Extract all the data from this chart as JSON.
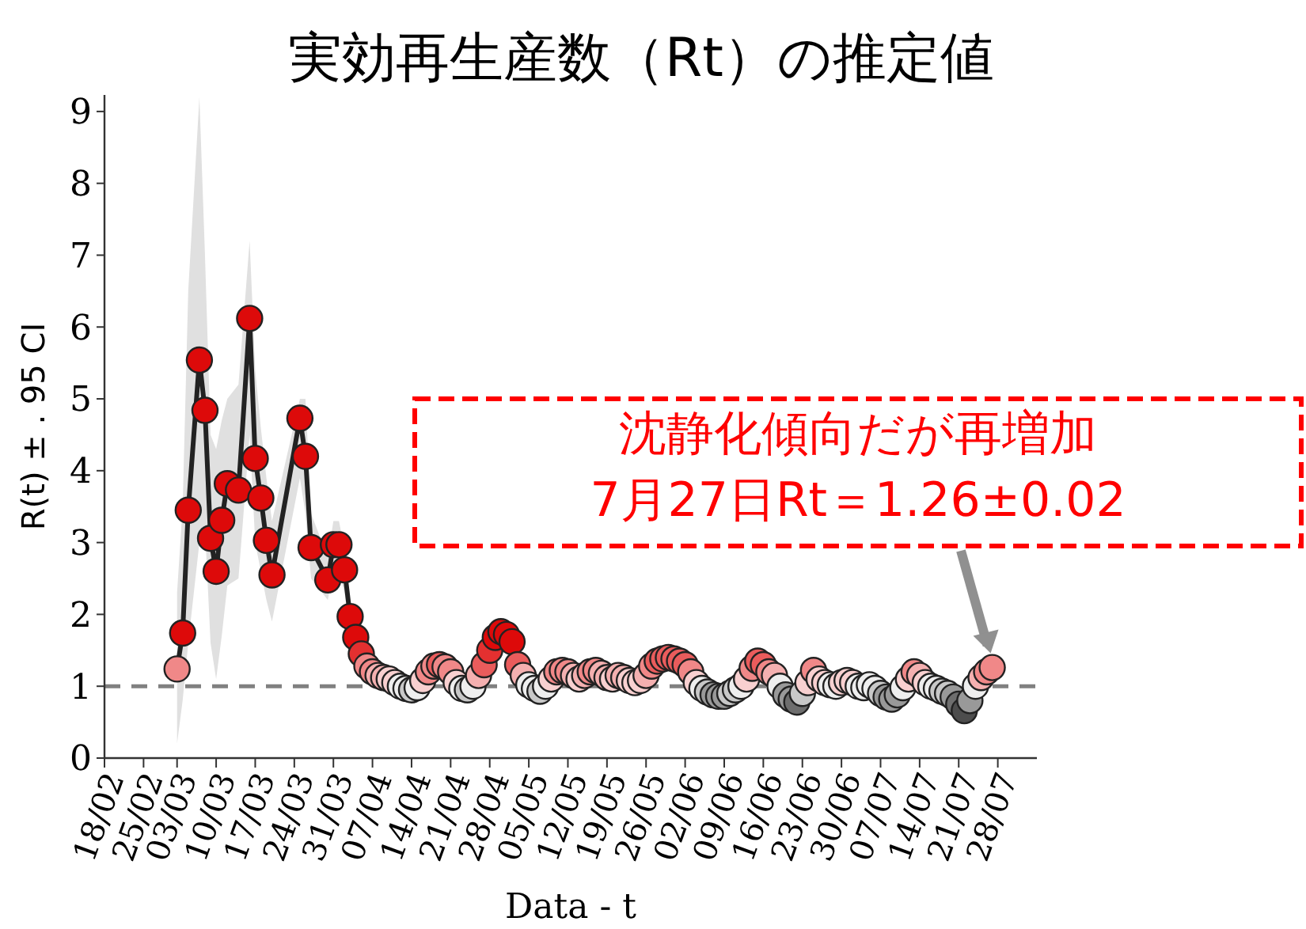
{
  "chart_data": {
    "type": "line",
    "title": "実効再生産数（Rt）の推定値",
    "xlabel": "Data - t",
    "ylabel": "R(t) ± . 95 CI",
    "marker": "circle",
    "grid": false,
    "xlim": [
      "--02-18",
      "--08-04"
    ],
    "ylim": [
      0,
      9.23
    ],
    "yticks": [
      0,
      1,
      2,
      3,
      4,
      5,
      6,
      7,
      8,
      9
    ],
    "xticks": [
      {
        "value": "--02-18",
        "label": "18/02"
      },
      {
        "value": "--02-25",
        "label": "25/02"
      },
      {
        "value": "--03-03",
        "label": "03/03"
      },
      {
        "value": "--03-10",
        "label": "10/03"
      },
      {
        "value": "--03-17",
        "label": "17/03"
      },
      {
        "value": "--03-24",
        "label": "24/03"
      },
      {
        "value": "--03-31",
        "label": "31/03"
      },
      {
        "value": "--04-07",
        "label": "07/04"
      },
      {
        "value": "--04-14",
        "label": "14/04"
      },
      {
        "value": "--04-21",
        "label": "21/04"
      },
      {
        "value": "--04-28",
        "label": "28/04"
      },
      {
        "value": "--05-05",
        "label": "05/05"
      },
      {
        "value": "--05-12",
        "label": "12/05"
      },
      {
        "value": "--05-19",
        "label": "19/05"
      },
      {
        "value": "--05-26",
        "label": "26/05"
      },
      {
        "value": "--06-02",
        "label": "02/06"
      },
      {
        "value": "--06-09",
        "label": "09/06"
      },
      {
        "value": "--06-16",
        "label": "16/06"
      },
      {
        "value": "--06-23",
        "label": "23/06"
      },
      {
        "value": "--06-30",
        "label": "30/06"
      },
      {
        "value": "--07-07",
        "label": "07/07"
      },
      {
        "value": "--07-14",
        "label": "14/07"
      },
      {
        "value": "--07-21",
        "label": "21/07"
      },
      {
        "value": "--07-28",
        "label": "28/07"
      }
    ],
    "ref_lines": [
      {
        "axis": "y",
        "value": 1,
        "color": "#808080",
        "line_style": "dashed"
      }
    ],
    "annotations": [
      {
        "text": "沈静化傾向だが再増加\n7月27日Rt＝1.26±0.02",
        "x": "--07-27",
        "y": 1.26
      }
    ],
    "series": [
      {
        "color": "#222222",
        "x": [
          "--03-03",
          "--03-04",
          "--03-05",
          "--03-07",
          "--03-08",
          "--03-09",
          "--03-10",
          "--03-11",
          "--03-12",
          "--03-14",
          "--03-16",
          "--03-17",
          "--03-18",
          "--03-19",
          "--03-20",
          "--03-25",
          "--03-26",
          "--03-27",
          "--03-30",
          "--03-31",
          "--04-01",
          "--04-02",
          "--04-03",
          "--04-04",
          "--04-05",
          "--04-06",
          "--04-07",
          "--04-08",
          "--04-09",
          "--04-10",
          "--04-11",
          "--04-12",
          "--04-13",
          "--04-14",
          "--04-15",
          "--04-16",
          "--04-17",
          "--04-18",
          "--04-19",
          "--04-20",
          "--04-21",
          "--04-22",
          "--04-23",
          "--04-24",
          "--04-25",
          "--04-26",
          "--04-27",
          "--04-28",
          "--04-29",
          "--04-30",
          "--05-01",
          "--05-02",
          "--05-03",
          "--05-04",
          "--05-05",
          "--05-06",
          "--05-07",
          "--05-08",
          "--05-09",
          "--05-10",
          "--05-11",
          "--05-12",
          "--05-13",
          "--05-14",
          "--05-15",
          "--05-16",
          "--05-17",
          "--05-18",
          "--05-19",
          "--05-20",
          "--05-21",
          "--05-22",
          "--05-23",
          "--05-24",
          "--05-25",
          "--05-26",
          "--05-27",
          "--05-28",
          "--05-29",
          "--05-30",
          "--05-31",
          "--06-01",
          "--06-02",
          "--06-03",
          "--06-04",
          "--06-05",
          "--06-06",
          "--06-07",
          "--06-08",
          "--06-09",
          "--06-10",
          "--06-11",
          "--06-12",
          "--06-13",
          "--06-14",
          "--06-15",
          "--06-16",
          "--06-17",
          "--06-18",
          "--06-19",
          "--06-20",
          "--06-21",
          "--06-22",
          "--06-23",
          "--06-24",
          "--06-25",
          "--06-26",
          "--06-27",
          "--06-28",
          "--06-29",
          "--06-30",
          "--07-01",
          "--07-02",
          "--07-03",
          "--07-04",
          "--07-05",
          "--07-06",
          "--07-07",
          "--07-08",
          "--07-09",
          "--07-10",
          "--07-11",
          "--07-12",
          "--07-13",
          "--07-14",
          "--07-15",
          "--07-16",
          "--07-17",
          "--07-18",
          "--07-19",
          "--07-20",
          "--07-21",
          "--07-22",
          "--07-23",
          "--07-24",
          "--07-25",
          "--07-26",
          "--07-27"
        ],
        "values": [
          1.24,
          1.74,
          3.45,
          5.54,
          4.84,
          3.06,
          2.6,
          3.31,
          3.82,
          3.73,
          6.12,
          4.17,
          3.62,
          3.03,
          2.55,
          4.73,
          4.2,
          2.93,
          2.48,
          2.97,
          2.97,
          2.62,
          1.97,
          1.68,
          1.45,
          1.28,
          1.2,
          1.15,
          1.12,
          1.1,
          1.05,
          1.0,
          0.97,
          0.95,
          0.98,
          1.08,
          1.2,
          1.28,
          1.3,
          1.27,
          1.2,
          1.05,
          0.97,
          0.95,
          1.0,
          1.15,
          1.3,
          1.5,
          1.68,
          1.76,
          1.72,
          1.62,
          1.3,
          1.15,
          1.02,
          0.97,
          0.93,
          1.0,
          1.1,
          1.2,
          1.22,
          1.2,
          1.15,
          1.1,
          1.15,
          1.2,
          1.22,
          1.18,
          1.12,
          1.1,
          1.15,
          1.12,
          1.08,
          1.05,
          1.08,
          1.15,
          1.28,
          1.35,
          1.38,
          1.4,
          1.38,
          1.35,
          1.3,
          1.2,
          1.05,
          0.97,
          0.92,
          0.88,
          0.86,
          0.86,
          0.9,
          0.95,
          1.0,
          1.1,
          1.25,
          1.35,
          1.3,
          1.2,
          1.15,
          1.0,
          0.88,
          0.82,
          0.78,
          0.9,
          1.05,
          1.22,
          1.1,
          1.05,
          1.02,
          1.0,
          1.05,
          1.08,
          1.05,
          1.0,
          0.98,
          1.02,
          0.97,
          0.9,
          0.85,
          0.82,
          0.88,
          0.98,
          1.1,
          1.2,
          1.15,
          1.05,
          1.0,
          0.97,
          0.93,
          0.9,
          0.85,
          0.75,
          0.66,
          0.8,
          1.0,
          1.12,
          1.2,
          1.26
        ],
        "colors": [
          "#f08888",
          "#dd0a0a",
          "#dd0a0a",
          "#dd0a0a",
          "#dd0a0a",
          "#dd0a0a",
          "#dd0a0a",
          "#dd0a0a",
          "#dd0a0a",
          "#dd0a0a",
          "#dd0a0a",
          "#dd0a0a",
          "#dd0a0a",
          "#dd0a0a",
          "#dd0a0a",
          "#dd0a0a",
          "#dd0a0a",
          "#dd0a0a",
          "#dd0a0a",
          "#dd0a0a",
          "#dd0a0a",
          "#dd0a0a",
          "#dd0a0a",
          "#dd0a0a",
          "#e43030",
          "#f08888",
          "#f08888",
          "#f4b0b0",
          "#f4b0b0",
          "#f8d0d0",
          "#f8d0d0",
          "#eeeeee",
          "#eeeeee",
          "#c8c8c8",
          "#eeeeee",
          "#f8d0d0",
          "#f08888",
          "#f08888",
          "#ea5c5c",
          "#f08888",
          "#f08888",
          "#f8d0d0",
          "#eeeeee",
          "#c8c8c8",
          "#eeeeee",
          "#f4b0b0",
          "#ea5c5c",
          "#e43030",
          "#dd0a0a",
          "#dd0a0a",
          "#dd0a0a",
          "#dd0a0a",
          "#ea5c5c",
          "#f4b0b0",
          "#eeeeee",
          "#eeeeee",
          "#c8c8c8",
          "#eeeeee",
          "#f8d0d0",
          "#f08888",
          "#f08888",
          "#f08888",
          "#f4b0b0",
          "#f8d0d0",
          "#f4b0b0",
          "#f08888",
          "#f08888",
          "#f4b0b0",
          "#f4b0b0",
          "#f8d0d0",
          "#f4b0b0",
          "#f4b0b0",
          "#f8d0d0",
          "#f8d0d0",
          "#f8d0d0",
          "#f4b0b0",
          "#f08888",
          "#ea5c5c",
          "#ea5c5c",
          "#ea5c5c",
          "#ea5c5c",
          "#ea5c5c",
          "#ea5c5c",
          "#f08888",
          "#f8d0d0",
          "#eeeeee",
          "#c8c8c8",
          "#999999",
          "#999999",
          "#999999",
          "#c8c8c8",
          "#c8c8c8",
          "#eeeeee",
          "#f8d0d0",
          "#f08888",
          "#ea5c5c",
          "#ea5c5c",
          "#f08888",
          "#f4b0b0",
          "#eeeeee",
          "#999999",
          "#999999",
          "#6e6e6e",
          "#c8c8c8",
          "#f8d0d0",
          "#f08888",
          "#f8d0d0",
          "#f8d0d0",
          "#eeeeee",
          "#eeeeee",
          "#f8d0d0",
          "#f8d0d0",
          "#f8d0d0",
          "#eeeeee",
          "#eeeeee",
          "#eeeeee",
          "#eeeeee",
          "#c8c8c8",
          "#999999",
          "#999999",
          "#999999",
          "#eeeeee",
          "#f8d0d0",
          "#f08888",
          "#f4b0b0",
          "#f8d0d0",
          "#eeeeee",
          "#eeeeee",
          "#c8c8c8",
          "#c8c8c8",
          "#999999",
          "#6e6e6e",
          "#4d4d4d",
          "#999999",
          "#eeeeee",
          "#f4b0b0",
          "#f08888",
          "#f08888"
        ],
        "lower": [
          0.2,
          0.8,
          1.6,
          3.0,
          3.2,
          1.6,
          1.1,
          1.7,
          2.4,
          2.5,
          4.5,
          3.0,
          2.6,
          2.2,
          1.9,
          3.9,
          3.4,
          2.5,
          2.2,
          2.6,
          2.6,
          2.3,
          1.75,
          1.5,
          1.3,
          null,
          null,
          null,
          null,
          null,
          null,
          null,
          null,
          null,
          null,
          null,
          null,
          null,
          null,
          null,
          null,
          null,
          null,
          null,
          null,
          null,
          null,
          null,
          null,
          null,
          null,
          null,
          null,
          null,
          null,
          null,
          null,
          null,
          null,
          null,
          null,
          null,
          null,
          null,
          null,
          null,
          null,
          null,
          null,
          null,
          null,
          null,
          null,
          null,
          null,
          null,
          null,
          null,
          null,
          null,
          null,
          null,
          null,
          null,
          null,
          null,
          null,
          null,
          null,
          null,
          null,
          null,
          null,
          null,
          null,
          null,
          null,
          null,
          null,
          null,
          null,
          null,
          null,
          null,
          null,
          null,
          null,
          null,
          null,
          null,
          null,
          null,
          null,
          null,
          null,
          null,
          null,
          null,
          null,
          null,
          null,
          null,
          null,
          null,
          null,
          null,
          null,
          null,
          null,
          null,
          null,
          null,
          null,
          null,
          null,
          null,
          null,
          null
        ],
        "upper": [
          2.3,
          3.5,
          6.5,
          9.2,
          7.0,
          4.5,
          4.3,
          4.7,
          5.0,
          5.2,
          7.2,
          5.4,
          4.6,
          3.9,
          3.3,
          5.0,
          5.0,
          3.4,
          2.8,
          3.3,
          3.3,
          2.9,
          2.2,
          1.9,
          1.6,
          null,
          null,
          null,
          null,
          null,
          null,
          null,
          null,
          null,
          null,
          null,
          null,
          null,
          null,
          null,
          null,
          null,
          null,
          null,
          null,
          null,
          null,
          null,
          null,
          null,
          null,
          null,
          null,
          null,
          null,
          null,
          null,
          null,
          null,
          null,
          null,
          null,
          null,
          null,
          null,
          null,
          null,
          null,
          null,
          null,
          null,
          null,
          null,
          null,
          null,
          null,
          null,
          null,
          null,
          null,
          null,
          null,
          null,
          null,
          null,
          null,
          null,
          null,
          null,
          null,
          null,
          null,
          null,
          null,
          null,
          null,
          null,
          null,
          null,
          null,
          null,
          null,
          null,
          null,
          null,
          null,
          null,
          null,
          null,
          null,
          null,
          null,
          null,
          null,
          null,
          null,
          null,
          null,
          null,
          null,
          null,
          null,
          null,
          null,
          null,
          null,
          null,
          null,
          null,
          null,
          null,
          null,
          null,
          null,
          null,
          null,
          null,
          null
        ]
      }
    ]
  }
}
